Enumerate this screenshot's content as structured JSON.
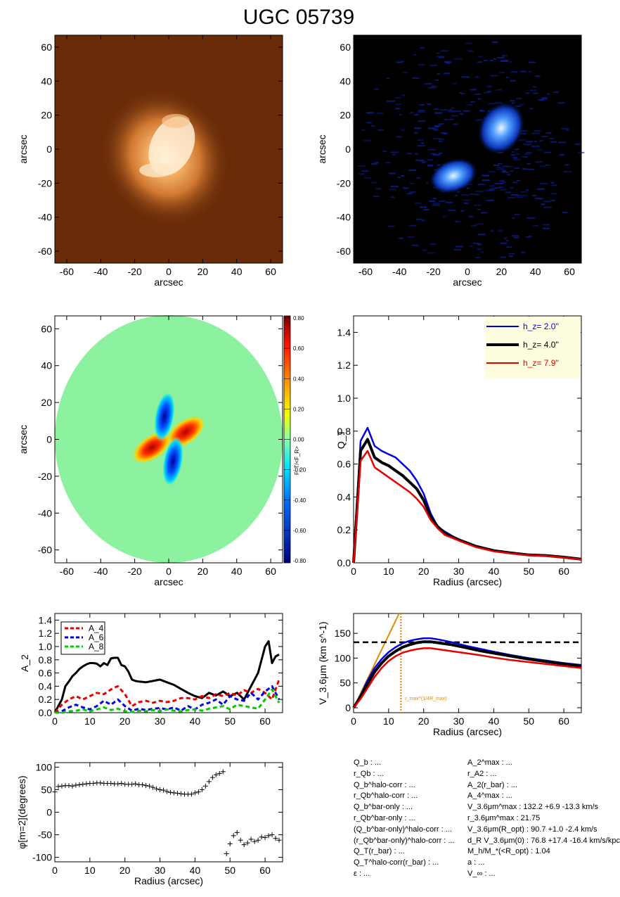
{
  "title": "UGC 05739",
  "colors": {
    "blue": "#0000e6",
    "black": "#000000",
    "red": "#e60000",
    "green": "#00cc00",
    "orange": "#e08a00",
    "ax": "#000000"
  },
  "chart_data": [
    {
      "id": "image-r",
      "type": "heatmap",
      "xlabel": "arcsec",
      "ylabel": "arcsec",
      "xlim": [
        -67,
        67
      ],
      "ylim": [
        -67,
        67
      ],
      "xticks": [
        -60,
        -40,
        -20,
        0,
        20,
        40,
        60
      ],
      "yticks": [
        -60,
        -40,
        -20,
        0,
        20,
        40,
        60
      ],
      "colormap": "orange"
    },
    {
      "id": "image-b",
      "type": "heatmap",
      "xlabel": "arcsec",
      "ylabel": "arcsec",
      "xlim": [
        -67,
        67
      ],
      "ylim": [
        -67,
        67
      ],
      "xticks": [
        -60,
        -40,
        -20,
        0,
        20,
        40,
        60
      ],
      "yticks": [
        -60,
        -40,
        -20,
        0,
        20,
        40,
        60
      ],
      "colormap": "blue"
    },
    {
      "id": "torque-map",
      "type": "heatmap",
      "xlabel": "arcsec",
      "ylabel": "arcsec",
      "xlim": [
        -67,
        67
      ],
      "ylim": [
        -67,
        67
      ],
      "xticks": [
        -60,
        -40,
        -20,
        0,
        20,
        40,
        60
      ],
      "yticks": [
        -60,
        -40,
        -20,
        0,
        20,
        40,
        60
      ],
      "colorbar": {
        "label": "F_T/<F_R>",
        "ticks": [
          "0.80",
          "0.60",
          "0.40",
          "0.20",
          "0.00",
          "-0.20",
          "-0.40",
          "-0.60",
          "-0.80"
        ]
      }
    },
    {
      "id": "qt",
      "type": "line",
      "xlabel": "Radius (arcsec)",
      "ylabel": "Q_T",
      "xlim": [
        0,
        65
      ],
      "ylim": [
        0,
        1.5
      ],
      "xticks": [
        0,
        10,
        20,
        30,
        40,
        50,
        60
      ],
      "yticks": [
        "0.0",
        "0.2",
        "0.4",
        "0.6",
        "0.8",
        "1.0",
        "1.2",
        "1.4"
      ],
      "legend": {
        "position": "top-right",
        "items": [
          {
            "label": "h_z= 2.0''",
            "color": "#0000e6"
          },
          {
            "label": "h_z= 4.0''",
            "color": "#000000"
          },
          {
            "label": "h_z= 7.9''",
            "color": "#e60000"
          }
        ]
      },
      "series": [
        {
          "name": "h_z= 2.0''",
          "color": "#0000e6",
          "x": [
            0,
            2,
            4,
            6,
            8,
            10,
            12,
            14,
            16,
            18,
            20,
            22,
            24,
            26,
            30,
            35,
            40,
            45,
            50,
            55,
            60,
            65
          ],
          "y": [
            0,
            0.74,
            0.82,
            0.71,
            0.68,
            0.66,
            0.64,
            0.6,
            0.56,
            0.5,
            0.42,
            0.3,
            0.22,
            0.19,
            0.14,
            0.1,
            0.076,
            0.062,
            0.05,
            0.046,
            0.036,
            0.022
          ]
        },
        {
          "name": "h_z= 4.0''",
          "color": "#000000",
          "x": [
            0,
            2,
            4,
            6,
            8,
            10,
            12,
            14,
            16,
            18,
            20,
            22,
            24,
            26,
            30,
            35,
            40,
            45,
            50,
            55,
            60,
            65
          ],
          "y": [
            0,
            0.68,
            0.75,
            0.64,
            0.61,
            0.59,
            0.56,
            0.53,
            0.49,
            0.45,
            0.38,
            0.28,
            0.22,
            0.18,
            0.14,
            0.1,
            0.074,
            0.06,
            0.048,
            0.044,
            0.034,
            0.022
          ]
        },
        {
          "name": "h_z= 7.9''",
          "color": "#e60000",
          "x": [
            0,
            2,
            4,
            6,
            8,
            10,
            12,
            14,
            16,
            18,
            20,
            22,
            24,
            26,
            30,
            35,
            40,
            45,
            50,
            55,
            60,
            65
          ],
          "y": [
            0,
            0.62,
            0.68,
            0.58,
            0.55,
            0.52,
            0.49,
            0.46,
            0.43,
            0.39,
            0.34,
            0.26,
            0.21,
            0.17,
            0.135,
            0.095,
            0.07,
            0.057,
            0.046,
            0.042,
            0.032,
            0.02
          ]
        }
      ]
    },
    {
      "id": "amplitudes",
      "type": "line",
      "ylabel": "A_2",
      "xlim": [
        0,
        65
      ],
      "ylim": [
        0,
        1.5
      ],
      "xticks": [
        0,
        10,
        20,
        30,
        40,
        50,
        60
      ],
      "yticks": [
        "0.0",
        "0.2",
        "0.4",
        "0.6",
        "0.8",
        "1.0",
        "1.2",
        "1.4"
      ],
      "legend": {
        "position": "top-left",
        "items": [
          {
            "label": "A_4",
            "color": "#e60000"
          },
          {
            "label": "A_6",
            "color": "#0000e6"
          },
          {
            "label": "A_8",
            "color": "#00cc00"
          }
        ]
      },
      "series": [
        {
          "name": "A_2",
          "color": "#000000",
          "x": [
            0,
            1,
            2,
            3,
            4,
            5,
            6,
            7,
            8,
            9,
            10,
            11,
            12,
            13,
            14,
            15,
            16,
            17,
            18,
            19,
            20,
            21,
            22,
            23,
            24,
            26,
            28,
            30,
            32,
            34,
            36,
            38,
            40,
            42,
            44,
            46,
            48,
            50,
            52,
            54,
            56,
            58,
            60,
            61,
            62,
            63,
            64
          ],
          "y": [
            0,
            0.1,
            0.2,
            0.4,
            0.47,
            0.55,
            0.6,
            0.66,
            0.7,
            0.73,
            0.75,
            0.75,
            0.74,
            0.7,
            0.75,
            0.72,
            0.82,
            0.83,
            0.83,
            0.72,
            0.7,
            0.62,
            0.5,
            0.48,
            0.47,
            0.46,
            0.48,
            0.5,
            0.46,
            0.42,
            0.36,
            0.3,
            0.25,
            0.22,
            0.3,
            0.26,
            0.32,
            0.25,
            0.3,
            0.2,
            0.4,
            0.6,
            1.0,
            1.08,
            0.75,
            0.85,
            0.88
          ]
        },
        {
          "name": "A_4",
          "color": "#e60000",
          "x": [
            0,
            2,
            4,
            6,
            8,
            10,
            12,
            14,
            16,
            17,
            18,
            20,
            22,
            24,
            26,
            28,
            30,
            32,
            34,
            36,
            38,
            40,
            42,
            44,
            46,
            48,
            50,
            52,
            54,
            56,
            58,
            60,
            62,
            64
          ],
          "y": [
            0,
            0.12,
            0.2,
            0.25,
            0.2,
            0.25,
            0.3,
            0.28,
            0.35,
            0.38,
            0.4,
            0.28,
            0.1,
            0.16,
            0.18,
            0.15,
            0.18,
            0.16,
            0.18,
            0.22,
            0.22,
            0.2,
            0.25,
            0.22,
            0.28,
            0.25,
            0.3,
            0.26,
            0.34,
            0.3,
            0.36,
            0.3,
            0.2,
            0.5
          ]
        },
        {
          "name": "A_6",
          "color": "#0000e6",
          "x": [
            0,
            2,
            4,
            6,
            8,
            10,
            12,
            14,
            16,
            18,
            20,
            22,
            24,
            26,
            28,
            30,
            32,
            34,
            36,
            38,
            40,
            42,
            44,
            46,
            48,
            50,
            52,
            54,
            56,
            58,
            60,
            62,
            64
          ],
          "y": [
            0,
            0.02,
            0.08,
            0.12,
            0.08,
            0.05,
            0.1,
            0.18,
            0.12,
            0.2,
            0.1,
            0.03,
            0.06,
            0.04,
            0.06,
            0.07,
            0.05,
            0.08,
            0.03,
            0.1,
            0.05,
            0.12,
            0.15,
            0.2,
            0.12,
            0.25,
            0.2,
            0.18,
            0.3,
            0.2,
            0.32,
            0.4,
            0.2
          ]
        },
        {
          "name": "A_8",
          "color": "#00cc00",
          "x": [
            0,
            2,
            4,
            6,
            8,
            10,
            12,
            14,
            16,
            18,
            20,
            22,
            24,
            26,
            28,
            30,
            32,
            34,
            36,
            38,
            40,
            42,
            44,
            46,
            48,
            50,
            52,
            54,
            56,
            58,
            60,
            62,
            64
          ],
          "y": [
            0,
            0.0,
            0.02,
            0.03,
            0.05,
            0.02,
            0.05,
            0.08,
            0.04,
            0.06,
            0.02,
            0.01,
            0.03,
            0.02,
            0.04,
            0.02,
            0.05,
            0.03,
            0.02,
            0.04,
            0.05,
            0.03,
            0.06,
            0.08,
            0.1,
            0.05,
            0.12,
            0.1,
            0.08,
            0.06,
            0.2,
            0.35,
            0.15
          ]
        }
      ]
    },
    {
      "id": "rotation-curve",
      "type": "line",
      "xlabel": "Radius (arcsec)",
      "ylabel": "V_3.6μm (km s^-1)",
      "xlim": [
        0,
        65
      ],
      "ylim": [
        -10,
        190
      ],
      "xticks": [
        0,
        10,
        20,
        30,
        40,
        50,
        60
      ],
      "yticks": [
        "0",
        "50",
        "100",
        "150"
      ],
      "hline": {
        "y": 132,
        "style": "dashed",
        "color": "#000000"
      },
      "vline": {
        "x": 13.5,
        "style": "dotted",
        "color": "#e08a00",
        "label": "r_max^(1/4R_max)"
      },
      "slope_line": {
        "x": [
          0,
          13
        ],
        "y": [
          0,
          190
        ],
        "color": "#e08a00"
      },
      "series": [
        {
          "name": "",
          "color": "#0000e6",
          "x": [
            0,
            2,
            4,
            6,
            8,
            10,
            12,
            14,
            16,
            18,
            20,
            22,
            24,
            28,
            32,
            36,
            40,
            45,
            50,
            55,
            60,
            65
          ],
          "y": [
            0,
            25,
            55,
            80,
            98,
            112,
            122,
            130,
            135,
            138,
            140,
            140,
            138,
            132,
            125,
            119,
            113,
            106,
            100,
            95,
            90,
            86
          ]
        },
        {
          "name": "",
          "color": "#000000",
          "x": [
            0,
            2,
            4,
            6,
            8,
            10,
            12,
            14,
            16,
            18,
            20,
            22,
            24,
            28,
            32,
            36,
            40,
            45,
            50,
            55,
            60,
            65
          ],
          "y": [
            0,
            22,
            48,
            72,
            90,
            104,
            114,
            122,
            127,
            131,
            133,
            133,
            131,
            127,
            121,
            115,
            110,
            104,
            98,
            93,
            88,
            84
          ]
        },
        {
          "name": "",
          "color": "#e60000",
          "x": [
            0,
            2,
            4,
            6,
            8,
            10,
            12,
            14,
            16,
            18,
            20,
            22,
            24,
            28,
            32,
            36,
            40,
            45,
            50,
            55,
            60,
            65
          ],
          "y": [
            0,
            18,
            40,
            62,
            80,
            94,
            104,
            111,
            115,
            118,
            120,
            120,
            118,
            114,
            110,
            106,
            101,
            96,
            92,
            88,
            84,
            80
          ]
        }
      ]
    },
    {
      "id": "phase",
      "type": "scatter",
      "xlabel": "Radius (arcsec)",
      "ylabel": "φ[m=2](degrees)",
      "xlim": [
        0,
        65
      ],
      "ylim": [
        -110,
        110
      ],
      "xticks": [
        0,
        10,
        20,
        30,
        40,
        50,
        60
      ],
      "yticks": [
        "100",
        "50",
        "0",
        "-50",
        "-100"
      ],
      "points": {
        "x": [
          0,
          1,
          2,
          3,
          4,
          5,
          6,
          7,
          8,
          9,
          10,
          11,
          12,
          13,
          14,
          15,
          16,
          17,
          18,
          19,
          20,
          21,
          22,
          23,
          24,
          25,
          26,
          27,
          28,
          29,
          30,
          31,
          32,
          33,
          34,
          35,
          36,
          37,
          38,
          39,
          40,
          41,
          42,
          43,
          44,
          45,
          46,
          47,
          48,
          49,
          50,
          51,
          52,
          53,
          54,
          55,
          56,
          57,
          58,
          59,
          60,
          61,
          62,
          63,
          64
        ],
        "y": [
          45,
          57,
          58,
          59,
          59,
          58,
          60,
          61,
          62,
          63,
          64,
          64,
          65,
          65,
          64,
          64,
          64,
          63,
          63,
          64,
          62,
          62,
          62,
          63,
          61,
          61,
          59,
          58,
          55,
          52,
          50,
          49,
          46,
          44,
          43,
          42,
          41,
          40,
          40,
          40,
          43,
          45,
          50,
          58,
          68,
          77,
          83,
          86,
          90,
          -92,
          -70,
          -52,
          -45,
          -62,
          -72,
          -68,
          -60,
          -65,
          -62,
          -55,
          -56,
          -52,
          -50,
          -58,
          -62
        ]
      }
    }
  ],
  "info_left": [
    "Q_b : ...",
    "r_Qb : ...",
    "Q_b^halo-corr : ...",
    "r_Qb^halo-corr : ...",
    "Q_b^bar-only : ...",
    "r_Qb^bar-only : ...",
    "(Q_b^bar-only)^halo-corr : ...",
    "(r_Qb^bar-only)^halo-corr : ...",
    "Q_T(r_bar) : ...",
    "Q_T^halo-corr(r_bar) : ...",
    "ε : ..."
  ],
  "info_right": [
    "A_2^max : ...",
    "r_A2 : ...",
    "A_2(r_bar) : ...",
    "A_4^max : ...",
    "V_3.6μm^max : 132.2 +6.9 -13.3 km/s",
    "r_3.6μm^max : 21.75",
    "V_3.6μm(R_opt) : 90.7 +1.0 -2.4 km/s",
    "d_R V_3.6μm(0) : 76.8 +17.4 -16.4 km/s/kpc",
    "M_h/M_*(<R_opt) : 1.04",
    "a : ...",
    "V_∞ : ..."
  ]
}
